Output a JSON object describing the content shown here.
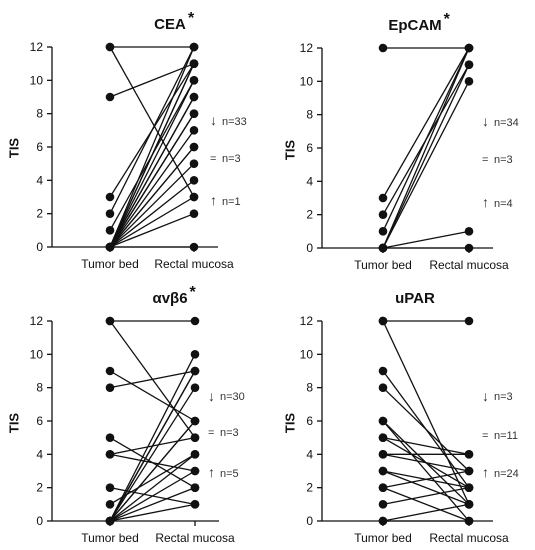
{
  "chart_data": [
    {
      "type": "line",
      "title": "CEA",
      "significance": "*",
      "ylabel": "TIS",
      "ylim": [
        0,
        12
      ],
      "yticks": [
        "0",
        "2",
        "4",
        "6",
        "8",
        "10",
        "12"
      ],
      "categories": [
        "Tumor bed",
        "Rectal mucosa"
      ],
      "pairs": [
        [
          12,
          12
        ],
        [
          12,
          3
        ],
        [
          9,
          11
        ],
        [
          3,
          11
        ],
        [
          2,
          12
        ],
        [
          1,
          10
        ],
        [
          0,
          12
        ],
        [
          0,
          11
        ],
        [
          0,
          11
        ],
        [
          0,
          10
        ],
        [
          0,
          9
        ],
        [
          0,
          9
        ],
        [
          0,
          8
        ],
        [
          0,
          8
        ],
        [
          0,
          7
        ],
        [
          0,
          6
        ],
        [
          0,
          6
        ],
        [
          0,
          5
        ],
        [
          0,
          4
        ],
        [
          0,
          3
        ],
        [
          0,
          2
        ],
        [
          0,
          0
        ]
      ],
      "annotations": [
        {
          "arrow": "↓",
          "text": "n=33"
        },
        {
          "arrow": "=",
          "text": "n=3"
        },
        {
          "arrow": "↑",
          "text": "n=1"
        }
      ]
    },
    {
      "type": "line",
      "title": "EpCAM",
      "significance": "*",
      "ylabel": "TIS",
      "ylim": [
        0,
        12
      ],
      "yticks": [
        "0",
        "2",
        "4",
        "6",
        "8",
        "10",
        "12"
      ],
      "categories": [
        "Tumor bed",
        "Rectal mucosa"
      ],
      "pairs": [
        [
          12,
          12
        ],
        [
          3,
          12
        ],
        [
          2,
          11
        ],
        [
          1,
          12
        ],
        [
          0,
          12
        ],
        [
          0,
          11
        ],
        [
          0,
          10
        ],
        [
          0,
          1
        ],
        [
          0,
          0
        ]
      ],
      "annotations": [
        {
          "arrow": "↓",
          "text": "n=34"
        },
        {
          "arrow": "=",
          "text": "n=3"
        },
        {
          "arrow": "↑",
          "text": "n=4"
        }
      ]
    },
    {
      "type": "line",
      "title": "αvβ6",
      "significance": "*",
      "ylabel": "TIS",
      "ylim": [
        0,
        12
      ],
      "yticks": [
        "0",
        "2",
        "4",
        "6",
        "8",
        "10",
        "12"
      ],
      "categories": [
        "Tumor bed",
        "Rectal mucosa"
      ],
      "pairs": [
        [
          12,
          12
        ],
        [
          12,
          5
        ],
        [
          9,
          6
        ],
        [
          8,
          9
        ],
        [
          5,
          2
        ],
        [
          4,
          5
        ],
        [
          4,
          3
        ],
        [
          2,
          1
        ],
        [
          1,
          4
        ],
        [
          0,
          10
        ],
        [
          0,
          9
        ],
        [
          0,
          9
        ],
        [
          0,
          8
        ],
        [
          0,
          6
        ],
        [
          0,
          6
        ],
        [
          0,
          4
        ],
        [
          0,
          3
        ],
        [
          0,
          2
        ],
        [
          0,
          1
        ]
      ],
      "annotations": [
        {
          "arrow": "↓",
          "text": "n=30"
        },
        {
          "arrow": "=",
          "text": "n=3"
        },
        {
          "arrow": "↑",
          "text": "n=5"
        }
      ]
    },
    {
      "type": "line",
      "title": "uPAR",
      "significance": "",
      "ylabel": "TIS",
      "ylim": [
        0,
        12
      ],
      "yticks": [
        "0",
        "2",
        "4",
        "6",
        "8",
        "10",
        "12"
      ],
      "categories": [
        "Tumor bed",
        "Rectal mucosa"
      ],
      "pairs": [
        [
          12,
          12
        ],
        [
          12,
          1
        ],
        [
          9,
          2
        ],
        [
          8,
          3
        ],
        [
          6,
          1
        ],
        [
          6,
          0
        ],
        [
          5,
          4
        ],
        [
          5,
          2
        ],
        [
          4,
          3
        ],
        [
          4,
          4
        ],
        [
          3,
          2
        ],
        [
          3,
          1
        ],
        [
          2,
          0
        ],
        [
          2,
          3
        ],
        [
          1,
          2
        ],
        [
          0,
          1
        ],
        [
          0,
          0
        ]
      ],
      "annotations": [
        {
          "arrow": "↓",
          "text": "n=3"
        },
        {
          "arrow": "=",
          "text": "n=11"
        },
        {
          "arrow": "↑",
          "text": "n=24"
        }
      ]
    }
  ]
}
